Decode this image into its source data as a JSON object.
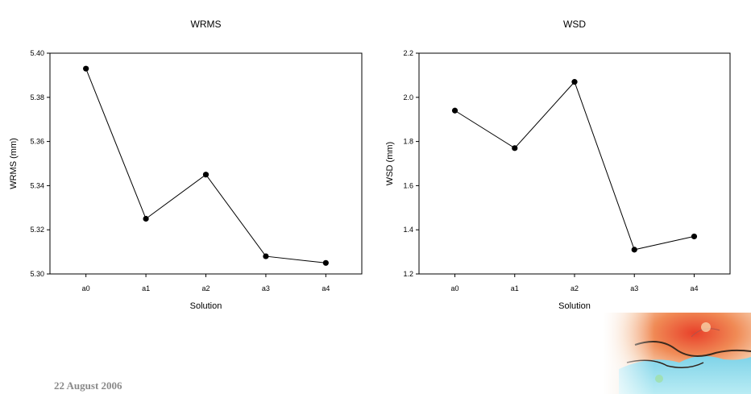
{
  "footer": {
    "date": "22 August 2006"
  },
  "chart_data": [
    {
      "type": "line",
      "title": "WRMS",
      "xlabel": "Solution",
      "ylabel": "WRMS (mm)",
      "categories": [
        "a0",
        "a1",
        "a2",
        "a3",
        "a4"
      ],
      "values": [
        5.393,
        5.325,
        5.345,
        5.308,
        5.305
      ],
      "ylim": [
        5.3,
        5.4
      ],
      "yticks": [
        "5.30",
        "5.32",
        "5.34",
        "5.36",
        "5.38",
        "5.40"
      ],
      "grid": false
    },
    {
      "type": "line",
      "title": "WSD",
      "xlabel": "Solution",
      "ylabel": "WSD (mm)",
      "categories": [
        "a0",
        "a1",
        "a2",
        "a3",
        "a4"
      ],
      "values": [
        1.94,
        1.77,
        2.07,
        1.31,
        1.37
      ],
      "ylim": [
        1.2,
        2.2
      ],
      "yticks": [
        "1.2",
        "1.4",
        "1.6",
        "1.8",
        "2.0",
        "2.2"
      ],
      "grid": false
    }
  ],
  "colors": {
    "line": "#000000",
    "marker": "#000000",
    "date_text": "#8a8a8a"
  },
  "decorations": {
    "corner_image": "map-thumbnail-icon"
  }
}
